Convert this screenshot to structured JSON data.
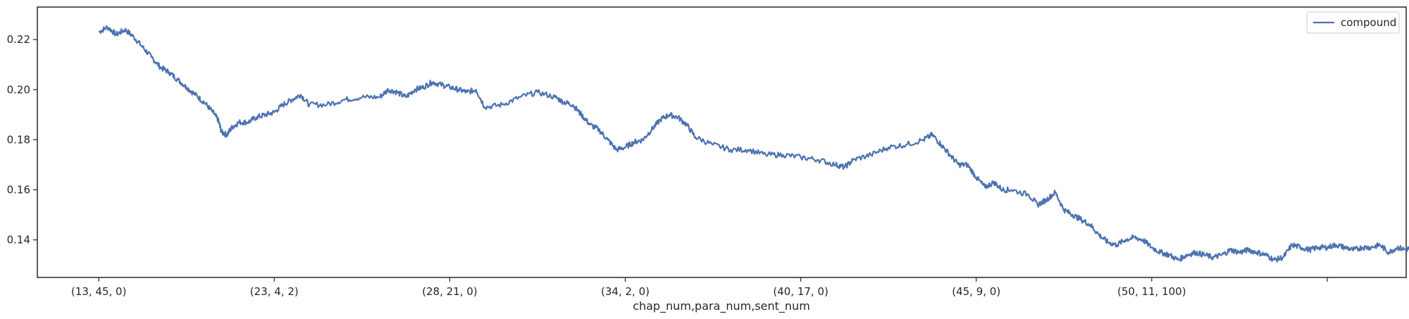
{
  "chart_data": {
    "type": "line",
    "title": "",
    "xlabel": "chap_num,para_num,sent_num",
    "ylabel": "",
    "x_tick_labels": [
      "(13, 45, 0)",
      "(23, 4, 2)",
      "(28, 21, 0)",
      "(34, 2, 0)",
      "(40, 17, 0)",
      "(45, 9, 0)",
      "(50, 11, 100)",
      ""
    ],
    "x_tick_positions": [
      0,
      1,
      2,
      3,
      4,
      5,
      6,
      7
    ],
    "xlim": [
      -0.35,
      7.45
    ],
    "ylim": [
      0.125,
      0.233
    ],
    "y_ticks": [
      0.14,
      0.16,
      0.18,
      0.2,
      0.22
    ],
    "y_tick_labels": [
      "0.14",
      "0.16",
      "0.18",
      "0.20",
      "0.22"
    ],
    "grid": false,
    "legend": "upper right",
    "series": [
      {
        "name": "compound",
        "color": "#4c72b0",
        "points": [
          [
            0.0,
            0.223
          ],
          [
            0.05,
            0.225
          ],
          [
            0.1,
            0.222
          ],
          [
            0.15,
            0.224
          ],
          [
            0.2,
            0.221
          ],
          [
            0.25,
            0.217
          ],
          [
            0.3,
            0.213
          ],
          [
            0.35,
            0.209
          ],
          [
            0.4,
            0.207
          ],
          [
            0.45,
            0.204
          ],
          [
            0.5,
            0.201
          ],
          [
            0.55,
            0.198
          ],
          [
            0.6,
            0.195
          ],
          [
            0.65,
            0.191
          ],
          [
            0.68,
            0.188
          ],
          [
            0.7,
            0.183
          ],
          [
            0.73,
            0.182
          ],
          [
            0.76,
            0.185
          ],
          [
            0.8,
            0.187
          ],
          [
            0.85,
            0.187
          ],
          [
            0.9,
            0.189
          ],
          [
            0.95,
            0.19
          ],
          [
            1.0,
            0.191
          ],
          [
            1.05,
            0.194
          ],
          [
            1.1,
            0.196
          ],
          [
            1.15,
            0.198
          ],
          [
            1.2,
            0.194
          ],
          [
            1.3,
            0.194
          ],
          [
            1.4,
            0.196
          ],
          [
            1.5,
            0.197
          ],
          [
            1.6,
            0.197
          ],
          [
            1.65,
            0.2
          ],
          [
            1.7,
            0.199
          ],
          [
            1.75,
            0.197
          ],
          [
            1.8,
            0.2
          ],
          [
            1.85,
            0.201
          ],
          [
            1.9,
            0.203
          ],
          [
            1.95,
            0.202
          ],
          [
            2.0,
            0.201
          ],
          [
            2.05,
            0.2
          ],
          [
            2.1,
            0.199
          ],
          [
            2.15,
            0.2
          ],
          [
            2.2,
            0.193
          ],
          [
            2.3,
            0.194
          ],
          [
            2.4,
            0.197
          ],
          [
            2.5,
            0.199
          ],
          [
            2.6,
            0.197
          ],
          [
            2.65,
            0.195
          ],
          [
            2.7,
            0.194
          ],
          [
            2.75,
            0.19
          ],
          [
            2.8,
            0.186
          ],
          [
            2.85,
            0.184
          ],
          [
            2.9,
            0.18
          ],
          [
            2.95,
            0.176
          ],
          [
            3.0,
            0.177
          ],
          [
            3.05,
            0.179
          ],
          [
            3.1,
            0.18
          ],
          [
            3.15,
            0.184
          ],
          [
            3.2,
            0.188
          ],
          [
            3.25,
            0.19
          ],
          [
            3.3,
            0.189
          ],
          [
            3.35,
            0.186
          ],
          [
            3.4,
            0.181
          ],
          [
            3.5,
            0.178
          ],
          [
            3.6,
            0.176
          ],
          [
            3.7,
            0.176
          ],
          [
            3.8,
            0.174
          ],
          [
            3.9,
            0.174
          ],
          [
            4.0,
            0.173
          ],
          [
            4.1,
            0.172
          ],
          [
            4.2,
            0.17
          ],
          [
            4.25,
            0.169
          ],
          [
            4.3,
            0.172
          ],
          [
            4.4,
            0.174
          ],
          [
            4.5,
            0.177
          ],
          [
            4.6,
            0.178
          ],
          [
            4.7,
            0.18
          ],
          [
            4.75,
            0.182
          ],
          [
            4.8,
            0.178
          ],
          [
            4.85,
            0.174
          ],
          [
            4.9,
            0.17
          ],
          [
            4.95,
            0.17
          ],
          [
            5.0,
            0.165
          ],
          [
            5.05,
            0.161
          ],
          [
            5.1,
            0.163
          ],
          [
            5.15,
            0.16
          ],
          [
            5.2,
            0.16
          ],
          [
            5.3,
            0.158
          ],
          [
            5.35,
            0.154
          ],
          [
            5.4,
            0.156
          ],
          [
            5.45,
            0.159
          ],
          [
            5.5,
            0.152
          ],
          [
            5.55,
            0.15
          ],
          [
            5.6,
            0.148
          ],
          [
            5.65,
            0.146
          ],
          [
            5.7,
            0.142
          ],
          [
            5.75,
            0.139
          ],
          [
            5.8,
            0.138
          ],
          [
            5.85,
            0.14
          ],
          [
            5.9,
            0.141
          ],
          [
            5.95,
            0.14
          ],
          [
            6.0,
            0.137
          ],
          [
            6.05,
            0.135
          ],
          [
            6.1,
            0.134
          ],
          [
            6.15,
            0.132
          ],
          [
            6.2,
            0.134
          ],
          [
            6.25,
            0.135
          ],
          [
            6.3,
            0.134
          ],
          [
            6.35,
            0.133
          ],
          [
            6.4,
            0.134
          ],
          [
            6.45,
            0.136
          ],
          [
            6.5,
            0.135
          ],
          [
            6.55,
            0.136
          ],
          [
            6.6,
            0.135
          ],
          [
            6.65,
            0.134
          ],
          [
            6.7,
            0.132
          ],
          [
            6.75,
            0.133
          ],
          [
            6.8,
            0.138
          ],
          [
            6.85,
            0.137
          ],
          [
            6.9,
            0.136
          ],
          [
            6.95,
            0.137
          ],
          [
            7.0,
            0.137
          ],
          [
            7.05,
            0.138
          ],
          [
            7.1,
            0.137
          ],
          [
            7.15,
            0.136
          ],
          [
            7.2,
            0.137
          ],
          [
            7.25,
            0.137
          ],
          [
            7.3,
            0.138
          ],
          [
            7.35,
            0.135
          ],
          [
            7.4,
            0.137
          ],
          [
            7.45,
            0.136
          ],
          [
            7.5,
            0.138
          ],
          [
            7.55,
            0.14
          ],
          [
            7.58,
            0.139
          ]
        ]
      }
    ]
  }
}
